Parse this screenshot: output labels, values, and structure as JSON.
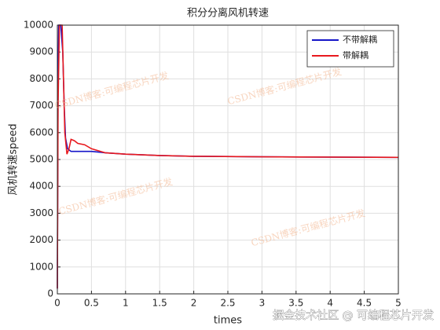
{
  "chart_data": {
    "type": "line",
    "title": "积分分离风机转速",
    "xlabel": "times",
    "ylabel": "风机转速speed",
    "xlim": [
      0,
      5
    ],
    "xticks": [
      0,
      0.5,
      1,
      1.5,
      2,
      2.5,
      3,
      3.5,
      4,
      4.5,
      5
    ],
    "ylim": [
      0,
      10000
    ],
    "yticks": [
      0,
      1000,
      2000,
      3000,
      4000,
      5000,
      6000,
      7000,
      8000,
      9000,
      10000
    ],
    "grid": true,
    "legend": "top-right",
    "series": [
      {
        "name": "不带解耦",
        "color": "#1515c8",
        "x": [
          0,
          0.01,
          0.02,
          0.05,
          0.08,
          0.1,
          0.12,
          0.15,
          0.2,
          0.3,
          0.5,
          0.7,
          1,
          1.5,
          2,
          3,
          4,
          5
        ],
        "values": [
          200,
          8000,
          10000,
          10000,
          9000,
          7000,
          5800,
          5400,
          5300,
          5300,
          5300,
          5250,
          5200,
          5150,
          5120,
          5100,
          5090,
          5080
        ]
      },
      {
        "name": "带解耦",
        "color": "#e8191e",
        "x": [
          0,
          0.01,
          0.03,
          0.07,
          0.09,
          0.11,
          0.14,
          0.17,
          0.2,
          0.25,
          0.3,
          0.4,
          0.5,
          0.7,
          1,
          1.5,
          2,
          3,
          4,
          5
        ],
        "values": [
          200,
          7000,
          10000,
          10000,
          8000,
          6000,
          5200,
          5400,
          5750,
          5700,
          5600,
          5550,
          5400,
          5250,
          5200,
          5150,
          5120,
          5100,
          5090,
          5080
        ]
      }
    ],
    "watermarks": [
      "CSDN博客:可编程芯片开发",
      "CSDN博客:可编程芯片开发",
      "CSDN博客:可编程芯片开发",
      "CSDN博客:可编程芯片开发"
    ],
    "footer_watermark": "掘金技术社区 @ 可编程芯片开发"
  }
}
